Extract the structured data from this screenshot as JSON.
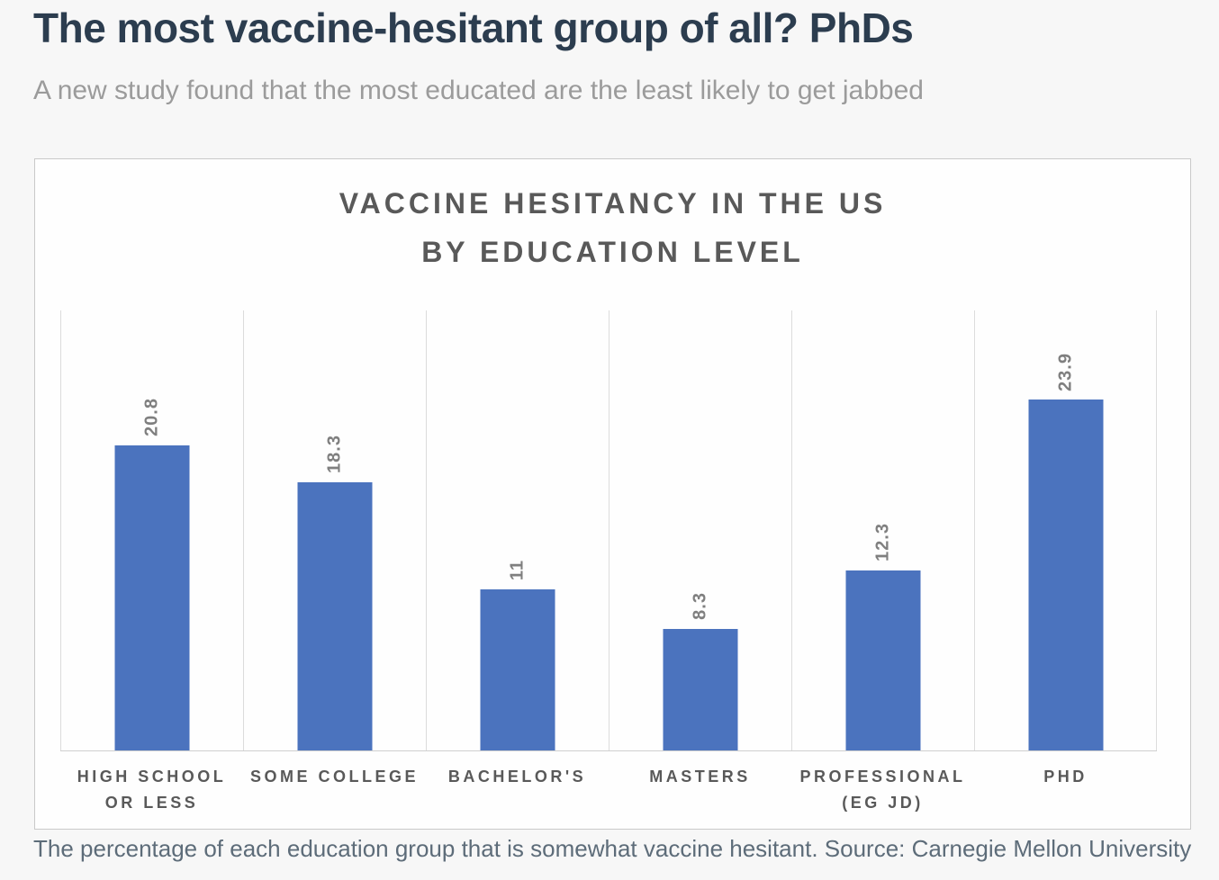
{
  "article": {
    "headline": "The most vaccine-hesitant group of all? PhDs",
    "subtitle": "A new study found that the most educated are the least likely to get jabbed",
    "caption": "The percentage of each education group that is somewhat vaccine hesitant. Source: Carnegie Mellon University"
  },
  "chart_data": {
    "type": "bar",
    "title": "VACCINE HESITANCY IN THE US\nBY EDUCATION LEVEL",
    "categories": [
      "HIGH SCHOOL\nOR LESS",
      "SOME COLLEGE",
      "BACHELOR'S",
      "MASTERS",
      "PROFESSIONAL\n(EG JD)",
      "PHD"
    ],
    "values": [
      20.8,
      18.3,
      11,
      8.3,
      12.3,
      23.9
    ],
    "value_labels": [
      "20.8",
      "18.3",
      "11",
      "8.3",
      "12.3",
      "23.9"
    ],
    "value_label_rotation_deg": 270,
    "xlabel": "",
    "ylabel": "",
    "ylim": [
      0,
      30
    ],
    "y_axis_ticks_visible": false,
    "grid": "vertical-category-separators",
    "legend_position": "none",
    "bar_color": "#4b73be",
    "gridline_color": "#dcdcdc",
    "title_color": "#595959",
    "label_color": "#7f7f7f"
  }
}
